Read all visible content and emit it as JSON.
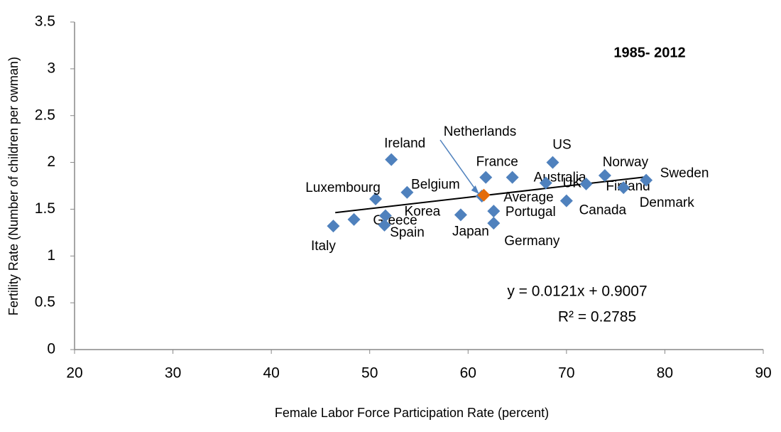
{
  "chart_data": {
    "type": "scatter",
    "title": "1985- 2012",
    "xlabel": "Female Labor Force Participation Rate (percent)",
    "ylabel": "Fertility Rate (Number of children per owman)",
    "xlim": [
      20,
      90
    ],
    "xticks": [
      20,
      30,
      40,
      50,
      60,
      70,
      80,
      90
    ],
    "ylim": [
      0,
      3.5
    ],
    "yticks": [
      0,
      0.5,
      1,
      1.5,
      2,
      2.5,
      3,
      3.5
    ],
    "series": [
      {
        "color": "#4f81bd",
        "labels": [
          "Ireland",
          "Luxembourg",
          "Belgium",
          "Italy",
          "Greece",
          "Korea",
          "Spain",
          "Japan",
          "Netherlands",
          "France",
          "Australia",
          "UK",
          "US",
          "Portugal",
          "Germany",
          "Canada",
          "Norway",
          "Finland",
          "Denmark",
          "Sweden"
        ],
        "x": [
          52.2,
          50.6,
          53.8,
          46.3,
          48.4,
          51.6,
          51.5,
          59.25,
          61.4,
          61.8,
          64.5,
          67.9,
          68.6,
          62.6,
          62.6,
          70.0,
          73.9,
          72.0,
          75.8,
          78.1
        ],
        "y": [
          2.03,
          1.61,
          1.68,
          1.32,
          1.39,
          1.43,
          1.33,
          1.44,
          1.64,
          1.84,
          1.84,
          1.78,
          2.0,
          1.48,
          1.35,
          1.59,
          1.86,
          1.77,
          1.73,
          1.81
        ]
      },
      {
        "color": "#e46c0a",
        "labels": [
          "Average"
        ],
        "x": [
          61.6
        ],
        "y": [
          1.65
        ]
      }
    ],
    "trendline": {
      "slope": 0.0121,
      "intercept": 0.9007,
      "xrange": [
        46.5,
        78.3
      ],
      "color": "#000000"
    },
    "equation": "y = 0.0121x + 0.9007",
    "r_squared": "R² = 0.2785"
  }
}
